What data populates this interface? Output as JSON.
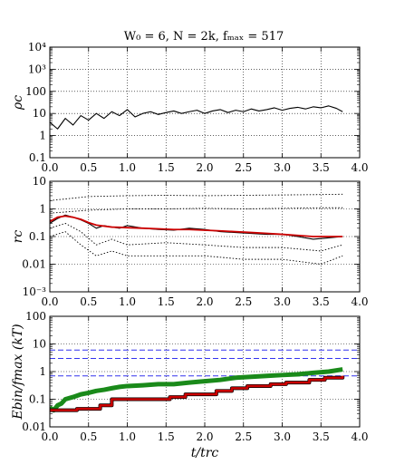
{
  "chart_data": [
    {
      "type": "line",
      "title": "W₀ = 6, N = 2k, fₘₐₓ = 517",
      "ylabel": "ρc",
      "xlabel": "",
      "xlim": [
        0.0,
        4.0
      ],
      "ylim": [
        0.1,
        10000
      ],
      "yscale": "log",
      "grid": true,
      "x_ticks": [
        "0.0",
        "0.5",
        "1.0",
        "1.5",
        "2.0",
        "2.5",
        "3.0",
        "3.5",
        "4.0"
      ],
      "y_ticks": [
        "0.1",
        "1",
        "10",
        "100",
        "10³",
        "10⁴"
      ],
      "series": [
        {
          "color": "#000000",
          "x": [
            0.0,
            0.1,
            0.2,
            0.3,
            0.4,
            0.5,
            0.6,
            0.7,
            0.8,
            0.9,
            1.0,
            1.1,
            1.2,
            1.3,
            1.4,
            1.5,
            1.6,
            1.7,
            1.8,
            1.9,
            2.0,
            2.1,
            2.2,
            2.3,
            2.4,
            2.5,
            2.6,
            2.7,
            2.8,
            2.9,
            3.0,
            3.1,
            3.2,
            3.3,
            3.4,
            3.5,
            3.6,
            3.7,
            3.78
          ],
          "y": [
            4,
            2,
            6,
            3,
            8,
            5,
            10,
            6,
            12,
            8,
            15,
            7,
            10,
            12,
            9,
            11,
            13,
            10,
            12,
            14,
            10,
            13,
            15,
            11,
            14,
            12,
            16,
            13,
            15,
            18,
            14,
            17,
            19,
            16,
            20,
            18,
            22,
            17,
            12
          ]
        }
      ]
    },
    {
      "type": "line",
      "title": "",
      "ylabel": "rc",
      "xlabel": "",
      "xlim": [
        0.0,
        4.0
      ],
      "ylim": [
        0.001,
        10
      ],
      "yscale": "log",
      "grid": true,
      "x_ticks": [
        "0.0",
        "0.5",
        "1.0",
        "1.5",
        "2.0",
        "2.5",
        "3.0",
        "3.5",
        "4.0"
      ],
      "y_ticks": [
        "10⁻³",
        "0.01",
        "0.1",
        "1",
        "10"
      ],
      "series": [
        {
          "color": "#000000",
          "style": "solid",
          "x": [
            0.0,
            0.1,
            0.2,
            0.3,
            0.4,
            0.5,
            0.6,
            0.7,
            0.8,
            0.9,
            1.0,
            1.2,
            1.4,
            1.6,
            1.8,
            2.0,
            2.2,
            2.4,
            2.6,
            2.8,
            3.0,
            3.2,
            3.4,
            3.6,
            3.78
          ],
          "y": [
            0.3,
            0.45,
            0.6,
            0.5,
            0.4,
            0.3,
            0.2,
            0.25,
            0.22,
            0.2,
            0.25,
            0.2,
            0.18,
            0.17,
            0.2,
            0.18,
            0.15,
            0.14,
            0.13,
            0.12,
            0.12,
            0.1,
            0.08,
            0.09,
            0.1
          ]
        },
        {
          "color": "#cc0000",
          "style": "solid",
          "x": [
            0.0,
            0.1,
            0.2,
            0.3,
            0.4,
            0.5,
            0.6,
            0.8,
            1.0,
            1.2,
            1.4,
            1.6,
            1.8,
            2.0,
            2.2,
            2.4,
            2.6,
            2.8,
            3.0,
            3.2,
            3.4,
            3.6,
            3.78
          ],
          "y": [
            0.35,
            0.5,
            0.55,
            0.5,
            0.42,
            0.32,
            0.26,
            0.22,
            0.21,
            0.2,
            0.19,
            0.18,
            0.18,
            0.17,
            0.16,
            0.15,
            0.14,
            0.13,
            0.12,
            0.11,
            0.1,
            0.1,
            0.1
          ]
        },
        {
          "color": "#000000",
          "style": "dotted",
          "x": [
            0.0,
            0.5,
            1.0,
            1.5,
            2.0,
            2.5,
            3.0,
            3.5,
            3.78
          ],
          "y": [
            2.0,
            2.8,
            3.0,
            3.1,
            3.0,
            3.1,
            3.2,
            3.3,
            3.4
          ]
        },
        {
          "color": "#000000",
          "style": "dotted",
          "x": [
            0.0,
            0.5,
            1.0,
            1.5,
            2.0,
            2.5,
            3.0,
            3.5,
            3.78
          ],
          "y": [
            0.7,
            0.9,
            1.0,
            1.0,
            1.05,
            1.0,
            1.05,
            1.1,
            1.1
          ]
        },
        {
          "color": "#000000",
          "style": "dotted",
          "x": [
            0.0,
            0.2,
            0.4,
            0.6,
            0.8,
            1.0,
            1.5,
            2.0,
            2.5,
            3.0,
            3.5,
            3.78
          ],
          "y": [
            0.2,
            0.3,
            0.15,
            0.05,
            0.08,
            0.05,
            0.06,
            0.05,
            0.04,
            0.04,
            0.03,
            0.05
          ]
        },
        {
          "color": "#000000",
          "style": "dotted",
          "x": [
            0.0,
            0.2,
            0.4,
            0.6,
            0.8,
            1.0,
            1.5,
            2.0,
            2.5,
            3.0,
            3.5,
            3.78
          ],
          "y": [
            0.1,
            0.15,
            0.05,
            0.02,
            0.03,
            0.02,
            0.02,
            0.02,
            0.015,
            0.015,
            0.01,
            0.02
          ]
        }
      ]
    },
    {
      "type": "line",
      "title": "",
      "ylabel": "Ebin/fmax (kT)",
      "xlabel": "t/trc",
      "xlim": [
        0.0,
        4.0
      ],
      "ylim": [
        0.01,
        100
      ],
      "yscale": "log",
      "grid": true,
      "x_ticks": [
        "0.0",
        "0.5",
        "1.0",
        "1.5",
        "2.0",
        "2.5",
        "3.0",
        "3.5",
        "4.0"
      ],
      "y_ticks": [
        "0.01",
        "0.1",
        "1",
        "10",
        "100"
      ],
      "hlines": [
        {
          "y": 6,
          "color": "#3333ee"
        },
        {
          "y": 3,
          "color": "#3333ee"
        },
        {
          "y": 0.7,
          "color": "#3333ee"
        }
      ],
      "series": [
        {
          "color": "#1a8a1a",
          "style": "thick",
          "x": [
            0.0,
            0.05,
            0.1,
            0.15,
            0.2,
            0.3,
            0.4,
            0.5,
            0.6,
            0.7,
            0.8,
            0.9,
            1.0,
            1.2,
            1.4,
            1.6,
            1.8,
            2.0,
            2.2,
            2.4,
            2.6,
            2.8,
            3.0,
            3.2,
            3.4,
            3.6,
            3.78
          ],
          "y": [
            0.05,
            0.04,
            0.06,
            0.07,
            0.1,
            0.12,
            0.15,
            0.17,
            0.2,
            0.22,
            0.25,
            0.28,
            0.3,
            0.32,
            0.35,
            0.35,
            0.4,
            0.45,
            0.5,
            0.6,
            0.65,
            0.7,
            0.75,
            0.8,
            0.9,
            1.0,
            1.2
          ]
        },
        {
          "color": "#cc0000",
          "style": "step",
          "x": [
            0.0,
            0.3,
            0.35,
            0.6,
            0.65,
            0.75,
            0.8,
            1.5,
            1.55,
            1.7,
            1.75,
            2.1,
            2.15,
            2.3,
            2.35,
            2.5,
            2.55,
            2.8,
            2.85,
            3.0,
            3.05,
            3.3,
            3.35,
            3.5,
            3.55,
            3.78
          ],
          "y": [
            0.04,
            0.04,
            0.045,
            0.045,
            0.06,
            0.06,
            0.1,
            0.1,
            0.12,
            0.12,
            0.15,
            0.15,
            0.2,
            0.2,
            0.25,
            0.25,
            0.3,
            0.3,
            0.35,
            0.35,
            0.4,
            0.4,
            0.5,
            0.5,
            0.6,
            0.7
          ]
        }
      ]
    }
  ]
}
